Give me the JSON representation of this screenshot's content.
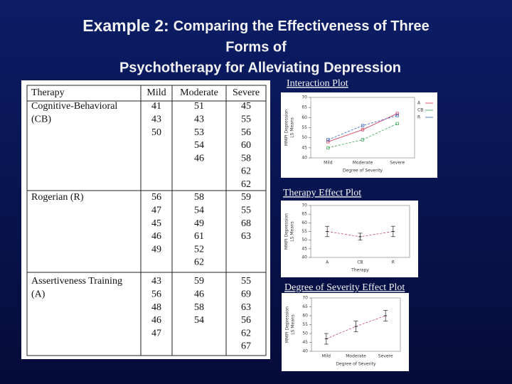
{
  "title": {
    "lead": "Example 2:",
    "lines": [
      "Comparing the Effectiveness of Three",
      "Forms of",
      "Psychotherapy for Alleviating Depression"
    ]
  },
  "table": {
    "header": [
      "Therapy",
      "Mild",
      "Moderate",
      "Severe"
    ],
    "rows": [
      {
        "therapy": [
          "Cognitive-Behavioral",
          "(CB)"
        ],
        "mild": [
          41,
          43,
          50
        ],
        "moderate": [
          51,
          43,
          53,
          54,
          46
        ],
        "severe": [
          45,
          55,
          56,
          60,
          58,
          62,
          62
        ]
      },
      {
        "therapy": [
          "Rogerian (R)"
        ],
        "mild": [
          56,
          47,
          45,
          46,
          49
        ],
        "moderate": [
          58,
          54,
          49,
          61,
          52,
          62
        ],
        "severe": [
          59,
          55,
          68,
          63
        ]
      },
      {
        "therapy": [
          "Assertiveness Training",
          "(A)"
        ],
        "mild": [
          43,
          56,
          48,
          46,
          47
        ],
        "moderate": [
          59,
          46,
          58,
          54
        ],
        "severe": [
          55,
          69,
          63,
          56,
          62,
          67
        ]
      }
    ]
  },
  "chart_data": [
    {
      "type": "line",
      "title": "Interaction Plot",
      "categories": [
        "Mild",
        "Moderate",
        "Severe"
      ],
      "series": [
        {
          "name": "A",
          "color": "#d03050",
          "values": [
            48,
            54,
            62
          ]
        },
        {
          "name": "CB",
          "color": "#30a050",
          "values": [
            45,
            49,
            57
          ]
        },
        {
          "name": "R",
          "color": "#3060c0",
          "values": [
            49,
            56,
            61
          ]
        }
      ],
      "ylim": [
        40,
        70
      ],
      "yticks": [
        40,
        45,
        50,
        55,
        60,
        65,
        70
      ],
      "ylabel": [
        "MMPI Depression",
        "LS Means"
      ],
      "xlabel": "Degree of Severity",
      "legend": "right"
    },
    {
      "type": "errorbar",
      "title": "Therapy Effect Plot",
      "categories": [
        "A",
        "CB",
        "R"
      ],
      "values": [
        55,
        52,
        55
      ],
      "errors": [
        3,
        2,
        3
      ],
      "color": "#c03050",
      "ylim": [
        40,
        70
      ],
      "yticks": [
        40,
        45,
        50,
        55,
        60,
        65,
        70
      ],
      "ylabel": [
        "MMPI Depression",
        "LS Means"
      ],
      "xlabel": "Therapy"
    },
    {
      "type": "errorbar",
      "title": "Degree of Severity Effect Plot",
      "categories": [
        "Mild",
        "Moderate",
        "Severe"
      ],
      "values": [
        47,
        54,
        60
      ],
      "errors": [
        3,
        3,
        3
      ],
      "color": "#c03050",
      "ylim": [
        40,
        70
      ],
      "yticks": [
        40,
        45,
        50,
        55,
        60,
        65,
        70
      ],
      "ylabel": [
        "MMPI Depression",
        "LS Means"
      ],
      "xlabel": "Degree of Severity"
    }
  ]
}
